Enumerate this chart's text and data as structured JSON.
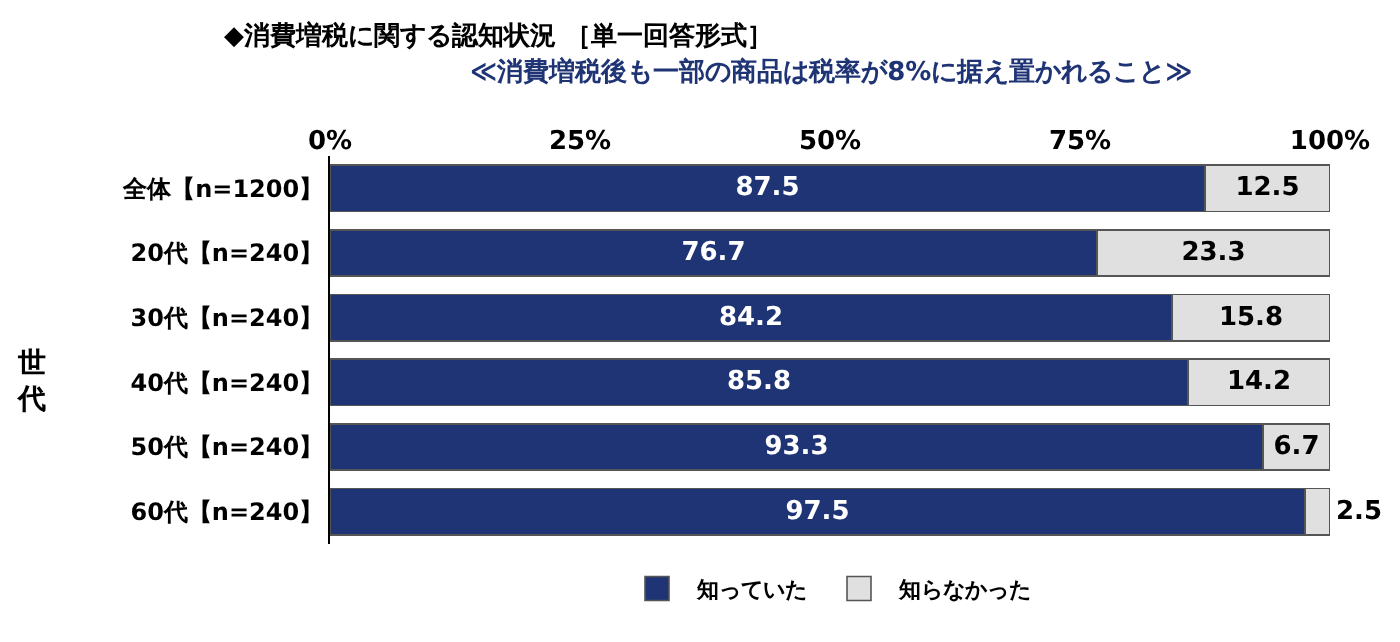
{
  "chart_data": {
    "type": "bar",
    "orientation": "horizontal",
    "stacked": true,
    "title": "◆消費増税に関する認知状況 ［単一回答形式］",
    "subtitle": "≪消費増税後も一部の商品は税率が8%に据え置かれること≫",
    "categories": [
      "全体【n=1200】",
      "20代【n=240】",
      "30代【n=240】",
      "40代【n=240】",
      "50代【n=240】",
      "60代【n=240】"
    ],
    "series": [
      {
        "name": "知っていた",
        "color": "#1f3474",
        "values": [
          87.5,
          76.7,
          84.2,
          85.8,
          93.3,
          97.5
        ]
      },
      {
        "name": "知らなかった",
        "color": "#e0e0e0",
        "values": [
          12.5,
          23.3,
          15.8,
          14.2,
          6.7,
          2.5
        ]
      }
    ],
    "xlim": [
      0,
      100
    ],
    "xticks": [
      {
        "value": 0,
        "label": "0%"
      },
      {
        "value": 25,
        "label": "25%"
      },
      {
        "value": 50,
        "label": "50%"
      },
      {
        "value": 75,
        "label": "75%"
      },
      {
        "value": 100,
        "label": "100%"
      }
    ],
    "annotations": [
      "世代"
    ],
    "data_labels": true,
    "legend": "bottom"
  }
}
